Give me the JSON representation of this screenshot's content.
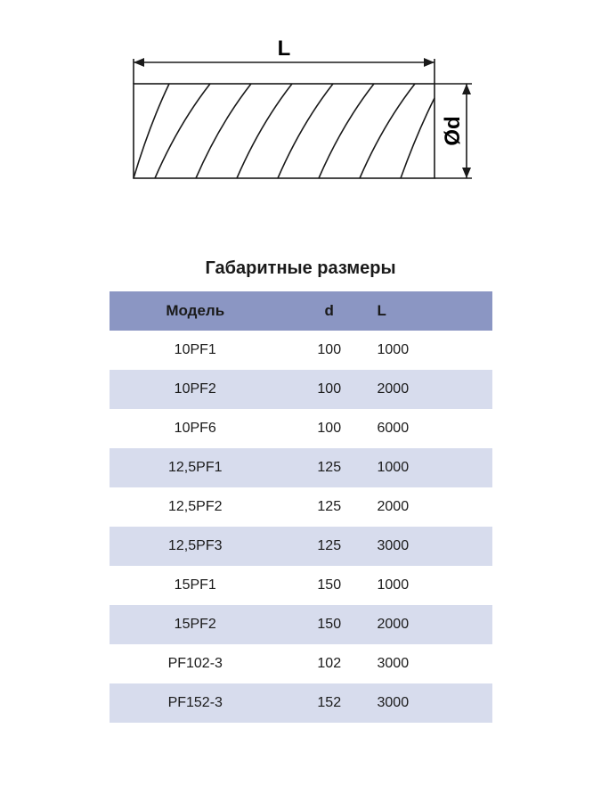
{
  "diagram": {
    "label_L": "L",
    "label_d": "Ød",
    "stroke": "#1a1a1a",
    "stroke_width": 1.6,
    "label_fontsize": 24,
    "label_weight": "600"
  },
  "table": {
    "title": "Габаритные размеры",
    "title_fontsize": 20,
    "header_bg": "#8b96c3",
    "alt_row_bg": "#d7dced",
    "text_color": "#1a1a1a",
    "columns": [
      {
        "key": "model",
        "label": "Модель",
        "width_pct": 45
      },
      {
        "key": "d",
        "label": "d",
        "width_pct": 25
      },
      {
        "key": "L",
        "label": "L",
        "width_pct": 30
      }
    ],
    "rows": [
      {
        "model": "10PF1",
        "d": "100",
        "L": "1000"
      },
      {
        "model": "10PF2",
        "d": "100",
        "L": "2000"
      },
      {
        "model": "10PF6",
        "d": "100",
        "L": "6000"
      },
      {
        "model": "12,5PF1",
        "d": "125",
        "L": "1000"
      },
      {
        "model": "12,5PF2",
        "d": "125",
        "L": "2000"
      },
      {
        "model": "12,5PF3",
        "d": "125",
        "L": "3000"
      },
      {
        "model": "15PF1",
        "d": "150",
        "L": "1000"
      },
      {
        "model": "15PF2",
        "d": "150",
        "L": "2000"
      },
      {
        "model": "PF102-3",
        "d": "102",
        "L": "3000"
      },
      {
        "model": "PF152-3",
        "d": "152",
        "L": "3000"
      }
    ]
  }
}
